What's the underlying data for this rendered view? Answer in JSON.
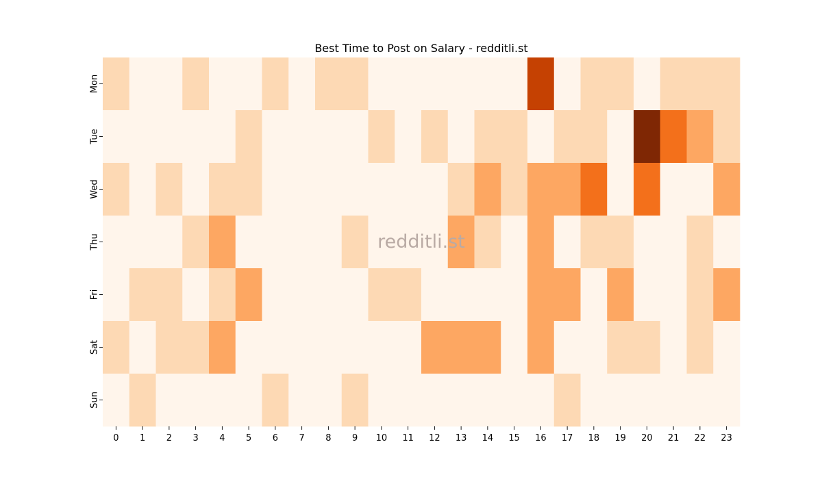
{
  "chart_data": {
    "type": "heatmap",
    "title": "Best Time to Post on Salary - redditli.st",
    "watermark": "redditli.st",
    "xlabel": "",
    "ylabel": "",
    "x": [
      "0",
      "1",
      "2",
      "3",
      "4",
      "5",
      "6",
      "7",
      "8",
      "9",
      "10",
      "11",
      "12",
      "13",
      "14",
      "15",
      "16",
      "17",
      "18",
      "19",
      "20",
      "21",
      "22",
      "23"
    ],
    "y": [
      "Mon",
      "Tue",
      "Wed",
      "Thu",
      "Fri",
      "Sat",
      "Sun"
    ],
    "values": [
      [
        1,
        0,
        0,
        1,
        0,
        0,
        1,
        0,
        1,
        1,
        0,
        0,
        0,
        0,
        0,
        0,
        6,
        0,
        1,
        1,
        0,
        1,
        1,
        1
      ],
      [
        0,
        0,
        0,
        0,
        0,
        1,
        0,
        0,
        0,
        0,
        1,
        0,
        1,
        0,
        1,
        1,
        0,
        1,
        1,
        0,
        8,
        5,
        3,
        1
      ],
      [
        1,
        0,
        1,
        0,
        1,
        1,
        0,
        0,
        0,
        0,
        0,
        0,
        0,
        1,
        3,
        1,
        3,
        3,
        5,
        0,
        5,
        0,
        0,
        3
      ],
      [
        0,
        0,
        0,
        1,
        3,
        0,
        0,
        0,
        0,
        1,
        0,
        0,
        0,
        3,
        1,
        0,
        3,
        0,
        1,
        1,
        0,
        0,
        1,
        0
      ],
      [
        0,
        1,
        1,
        0,
        1,
        3,
        0,
        0,
        0,
        0,
        1,
        1,
        0,
        0,
        0,
        0,
        3,
        3,
        0,
        3,
        0,
        0,
        1,
        3
      ],
      [
        1,
        0,
        1,
        1,
        3,
        0,
        0,
        0,
        0,
        0,
        0,
        0,
        3,
        3,
        3,
        0,
        3,
        0,
        0,
        1,
        1,
        0,
        1,
        0
      ],
      [
        0,
        1,
        0,
        0,
        0,
        0,
        1,
        0,
        0,
        1,
        0,
        0,
        0,
        0,
        0,
        0,
        0,
        1,
        0,
        0,
        0,
        0,
        0,
        0
      ]
    ],
    "colorscale": "Oranges",
    "colors": {
      "0": "#fff5eb",
      "1": "#fdd9b4",
      "3": "#fda762",
      "5": "#f3701b",
      "6": "#c54102",
      "8": "#7f2704"
    },
    "colorbar": false,
    "grid": false
  }
}
